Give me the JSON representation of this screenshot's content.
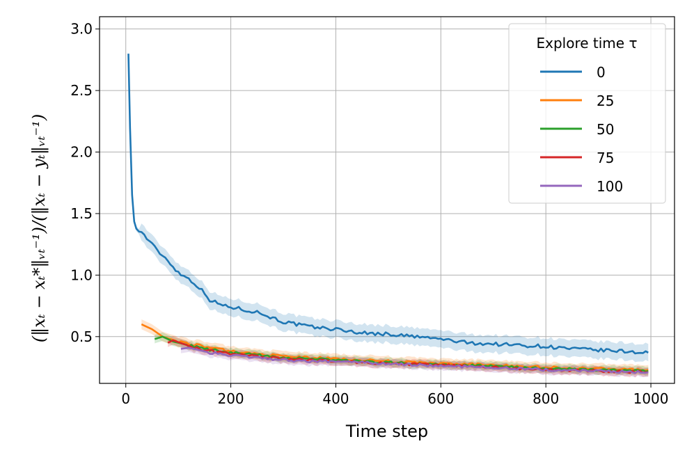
{
  "chart_data": {
    "type": "line",
    "xlabel": "Time step",
    "ylabel": "(‖x_t − x_t*‖_{V_t^{-1}})/(‖x_t − y_t‖_{V_t^{-1}})",
    "ylabel_display": "(‖xₜ − xₜ*‖ᵥₜ⁻¹)/(‖xₜ − yₜ‖ᵥₜ⁻¹)",
    "xlim": [
      -50,
      1045
    ],
    "ylim": [
      0.12,
      3.1
    ],
    "xticks": [
      0,
      200,
      400,
      600,
      800,
      1000
    ],
    "yticks": [
      0.5,
      1.0,
      1.5,
      2.0,
      2.5,
      3.0
    ],
    "xtick_labels": [
      "0",
      "200",
      "400",
      "600",
      "800",
      "1000"
    ],
    "ytick_labels": [
      "0.5",
      "1.0",
      "1.5",
      "2.0",
      "2.5",
      "3.0"
    ],
    "grid": true,
    "legend": {
      "title": "Explore time τ",
      "placement": "top-right"
    },
    "series": [
      {
        "name": "0",
        "color": "#1f77b4",
        "x": [
          5,
          8,
          12,
          16,
          20,
          30,
          40,
          60,
          80,
          100,
          120,
          140,
          150,
          160,
          180,
          200,
          250,
          300,
          350,
          400,
          450,
          500,
          550,
          600,
          650,
          700,
          750,
          800,
          850,
          900,
          950,
          995
        ],
        "y": [
          2.8,
          2.2,
          1.65,
          1.45,
          1.37,
          1.35,
          1.3,
          1.2,
          1.12,
          1.02,
          0.97,
          0.9,
          0.85,
          0.8,
          0.76,
          0.74,
          0.7,
          0.62,
          0.58,
          0.56,
          0.53,
          0.52,
          0.5,
          0.48,
          0.45,
          0.44,
          0.43,
          0.42,
          0.4,
          0.39,
          0.38,
          0.37
        ],
        "band": 0.07
      },
      {
        "name": "25",
        "color": "#ff7f0e",
        "x": [
          30,
          50,
          70,
          100,
          150,
          200,
          250,
          300,
          350,
          400,
          500,
          600,
          700,
          800,
          900,
          995
        ],
        "y": [
          0.6,
          0.56,
          0.5,
          0.46,
          0.42,
          0.38,
          0.36,
          0.34,
          0.33,
          0.32,
          0.3,
          0.28,
          0.27,
          0.25,
          0.24,
          0.23
        ],
        "band": 0.04
      },
      {
        "name": "50",
        "color": "#2ca02c",
        "x": [
          55,
          70,
          90,
          120,
          150,
          200,
          250,
          300,
          350,
          400,
          500,
          600,
          700,
          800,
          900,
          995
        ],
        "y": [
          0.48,
          0.5,
          0.46,
          0.43,
          0.4,
          0.37,
          0.35,
          0.33,
          0.32,
          0.31,
          0.29,
          0.27,
          0.26,
          0.24,
          0.23,
          0.22
        ],
        "band": 0.035
      },
      {
        "name": "75",
        "color": "#d62728",
        "x": [
          80,
          90,
          110,
          130,
          150,
          200,
          250,
          300,
          350,
          400,
          500,
          600,
          700,
          800,
          900,
          995
        ],
        "y": [
          0.45,
          0.47,
          0.44,
          0.41,
          0.39,
          0.36,
          0.34,
          0.32,
          0.31,
          0.3,
          0.28,
          0.27,
          0.25,
          0.23,
          0.22,
          0.21
        ],
        "band": 0.035
      },
      {
        "name": "100",
        "color": "#9467bd",
        "x": [
          105,
          120,
          140,
          160,
          200,
          250,
          300,
          350,
          400,
          500,
          600,
          700,
          800,
          900,
          995
        ],
        "y": [
          0.4,
          0.41,
          0.39,
          0.37,
          0.35,
          0.33,
          0.31,
          0.3,
          0.3,
          0.28,
          0.26,
          0.25,
          0.23,
          0.22,
          0.21
        ],
        "band": 0.035
      }
    ]
  }
}
